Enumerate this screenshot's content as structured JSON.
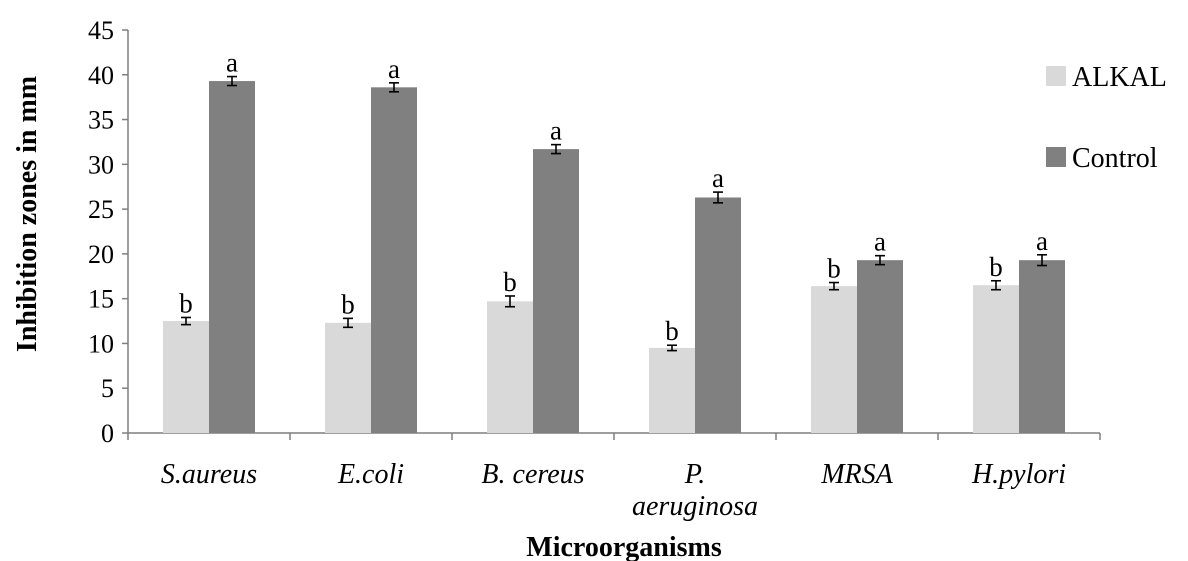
{
  "chart_data": {
    "type": "bar",
    "ylabel": "Inhibition zones in mm",
    "xlabel": "Microorganisms",
    "ylim": [
      0,
      45
    ],
    "yticks": [
      0,
      5,
      10,
      15,
      20,
      25,
      30,
      35,
      40,
      45
    ],
    "grid": false,
    "legend_position": "right",
    "categories": [
      [
        "S.aureus"
      ],
      [
        "E.coli"
      ],
      [
        "B. cereus"
      ],
      [
        "P.",
        "aeruginosa"
      ],
      [
        "MRSA"
      ],
      [
        "H.pylori"
      ]
    ],
    "series": [
      {
        "name": "ALKAL",
        "color": "#d9d9d9",
        "values": [
          12.5,
          12.3,
          14.7,
          9.5,
          16.4,
          16.5
        ],
        "errors": [
          0.4,
          0.5,
          0.6,
          0.3,
          0.4,
          0.5
        ],
        "letters": [
          "b",
          "b",
          "b",
          "b",
          "b",
          "b"
        ]
      },
      {
        "name": "Control",
        "color": "#808080",
        "values": [
          39.3,
          38.6,
          31.7,
          26.3,
          19.3,
          19.3
        ],
        "errors": [
          0.5,
          0.5,
          0.5,
          0.6,
          0.5,
          0.6
        ],
        "letters": [
          "a",
          "a",
          "a",
          "a",
          "a",
          "a"
        ]
      }
    ]
  }
}
